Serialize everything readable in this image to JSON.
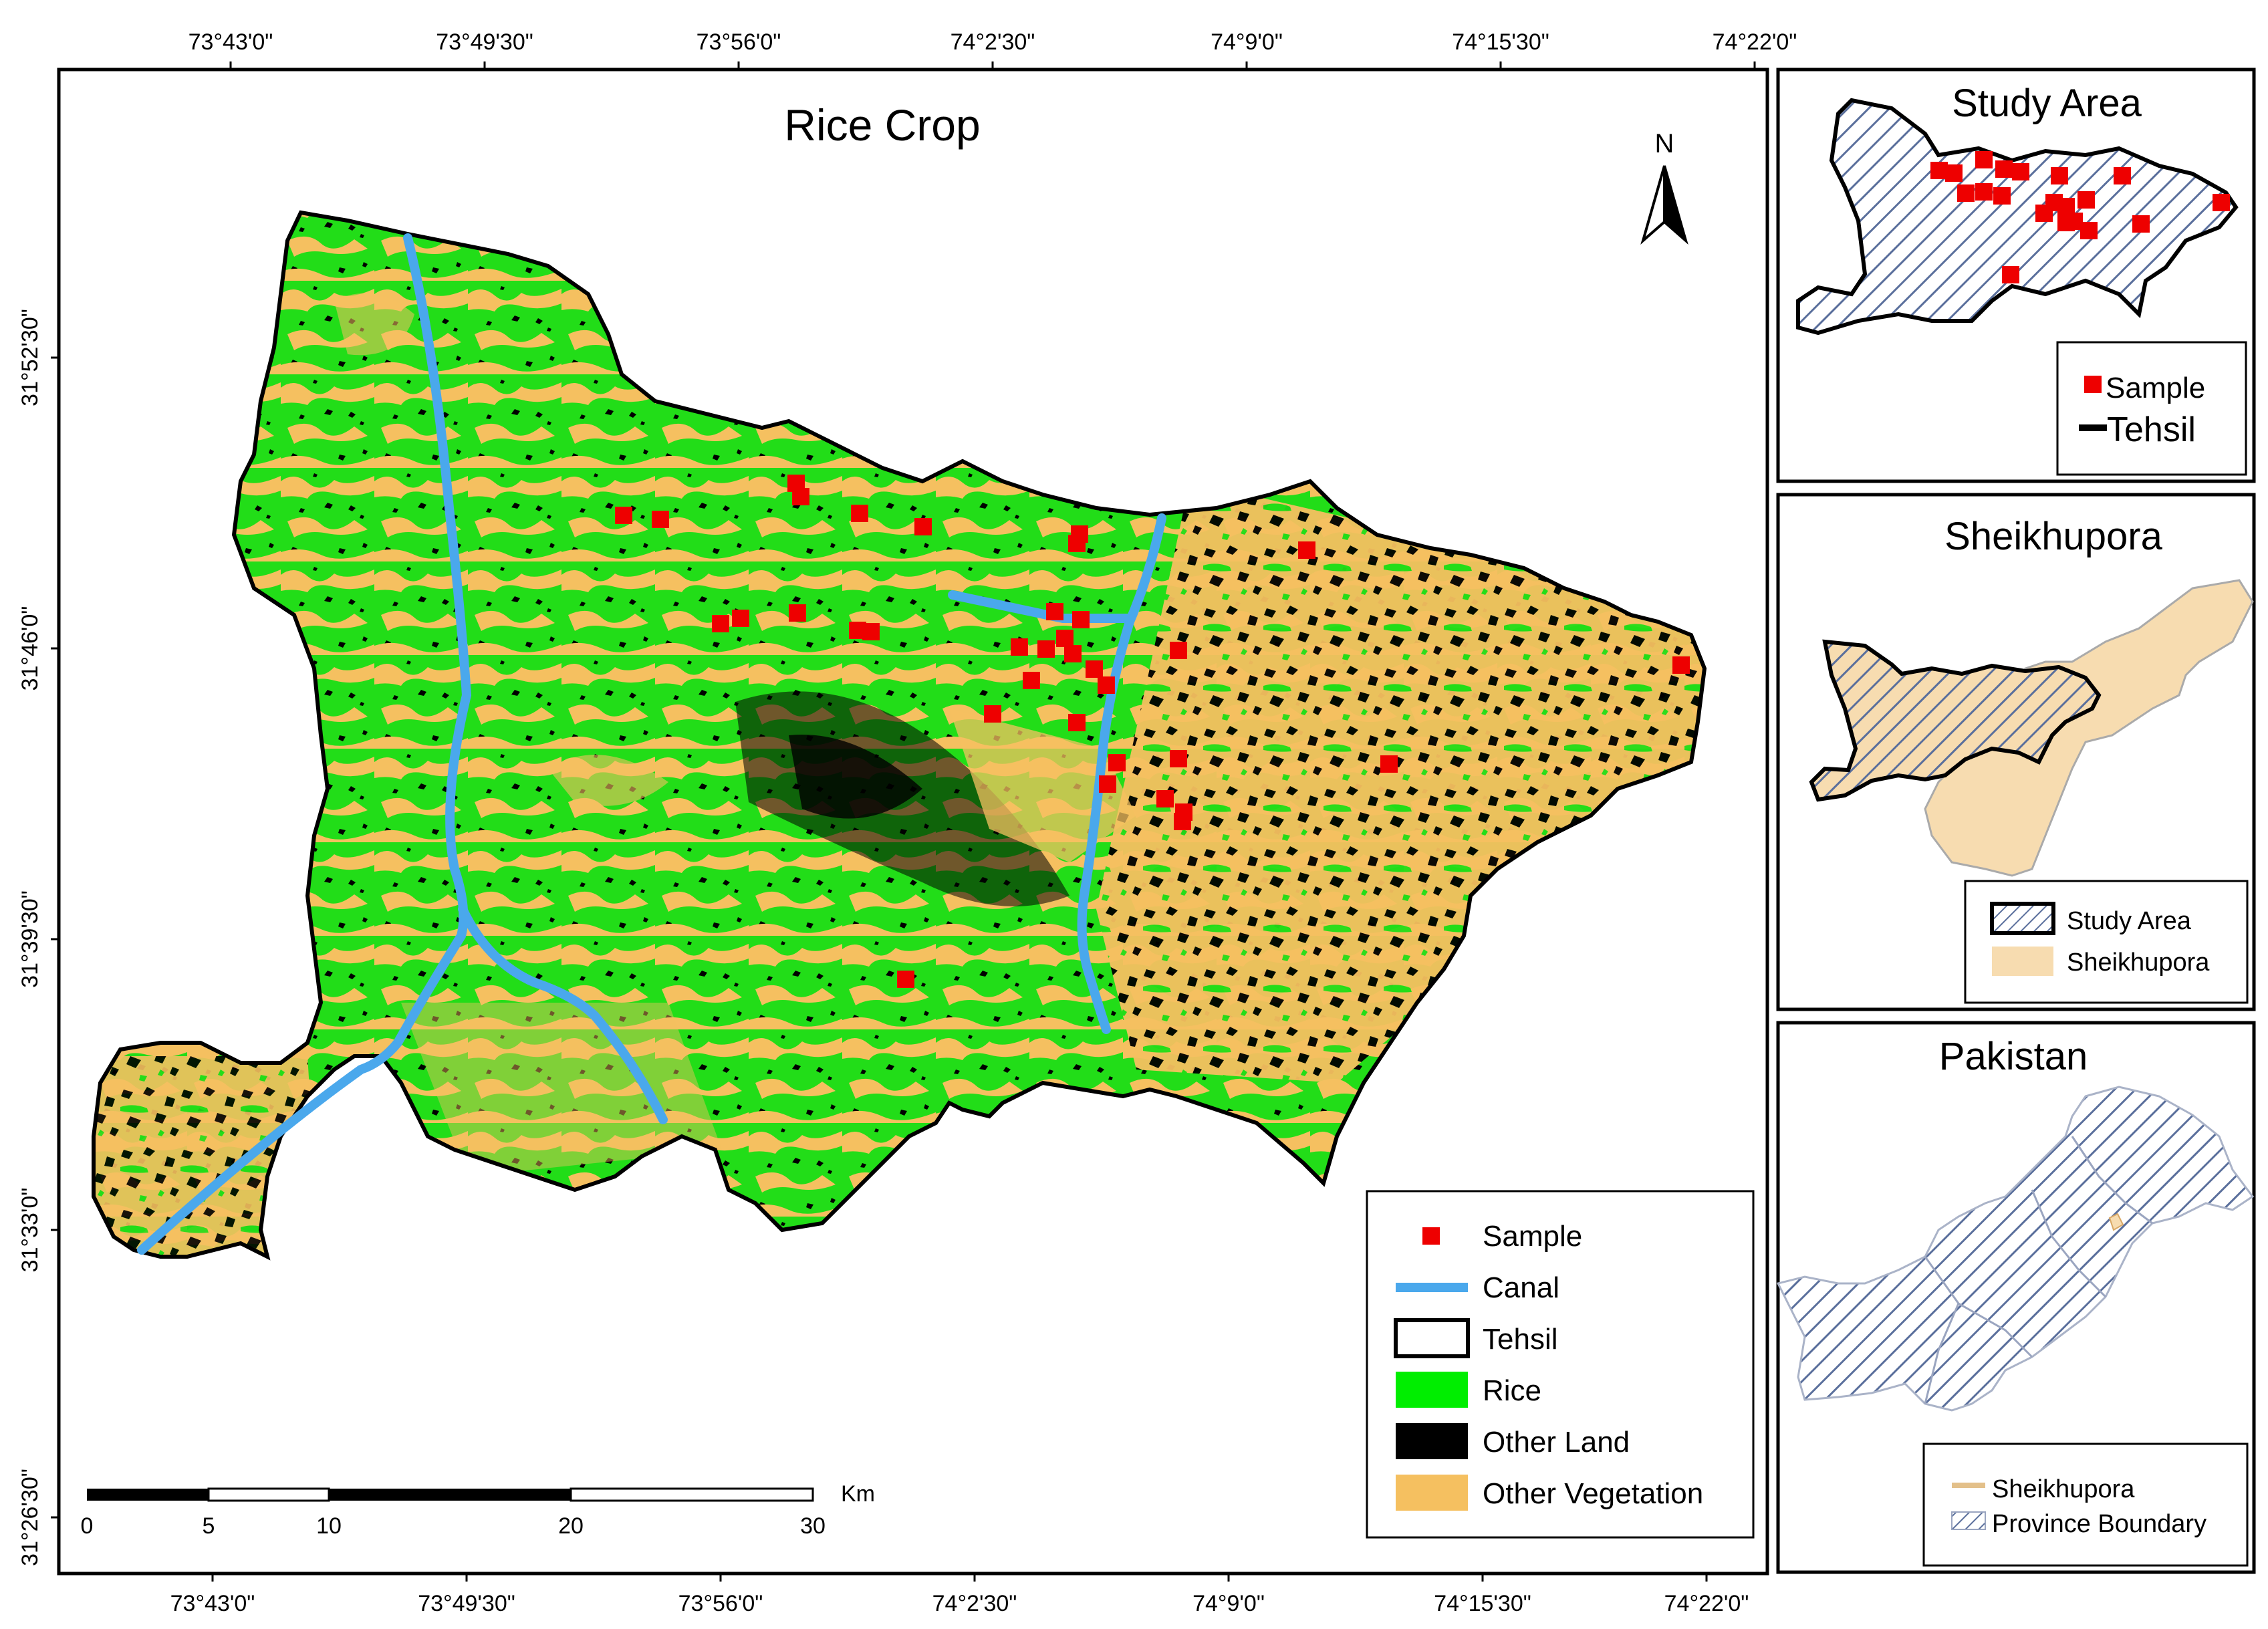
{
  "main_map": {
    "title": "Rice Crop",
    "north_label": "N",
    "top_lon_ticks": [
      "73°43'0\"",
      "73°49'30\"",
      "73°56'0\"",
      "74°2'30\"",
      "74°9'0\"",
      "74°15'30\"",
      "74°22'0\""
    ],
    "bottom_lon_ticks": [
      "73°43'0\"",
      "73°49'30\"",
      "73°56'0\"",
      "74°2'30\"",
      "74°9'0\"",
      "74°15'30\"",
      "74°22'0\""
    ],
    "lat_ticks": [
      "31°52'30\"",
      "31°46'0\"",
      "31°39'30\"",
      "31°33'0\"",
      "31°26'30\""
    ],
    "scale": {
      "unit": "Km",
      "labels": [
        "0",
        "5",
        "10",
        "20",
        "30"
      ]
    },
    "legend": [
      {
        "label": "Sample",
        "symbol": "red-square"
      },
      {
        "label": "Canal",
        "symbol": "blue-line"
      },
      {
        "label": "Tehsil",
        "symbol": "outline-box"
      },
      {
        "label": "Rice",
        "symbol": "green-box"
      },
      {
        "label": "Other Land",
        "symbol": "black-box"
      },
      {
        "label": "Other Vegetation",
        "symbol": "orange-box"
      }
    ],
    "colors": {
      "rice": "#00ee00",
      "other_land": "#000000",
      "other_vegetation": "#f5c060",
      "sample": "#ee0000",
      "canal": "#4aa8ec"
    }
  },
  "study_area_inset": {
    "title": "Study Area",
    "legend": [
      {
        "label": "Sample",
        "symbol": "red-square"
      },
      {
        "label": "Tehsil",
        "symbol": "black-line"
      }
    ]
  },
  "sheikhupora_inset": {
    "title": "Sheikhupora",
    "legend": [
      {
        "label": "Study Area",
        "symbol": "hatched-box"
      },
      {
        "label": "Sheikhupora",
        "symbol": "tan-box"
      }
    ]
  },
  "pakistan_inset": {
    "title": "Pakistan",
    "legend": [
      {
        "label": "Sheikhupora",
        "symbol": "tan-line"
      },
      {
        "label": "Province Boundary",
        "symbol": "hatched-box"
      }
    ]
  }
}
